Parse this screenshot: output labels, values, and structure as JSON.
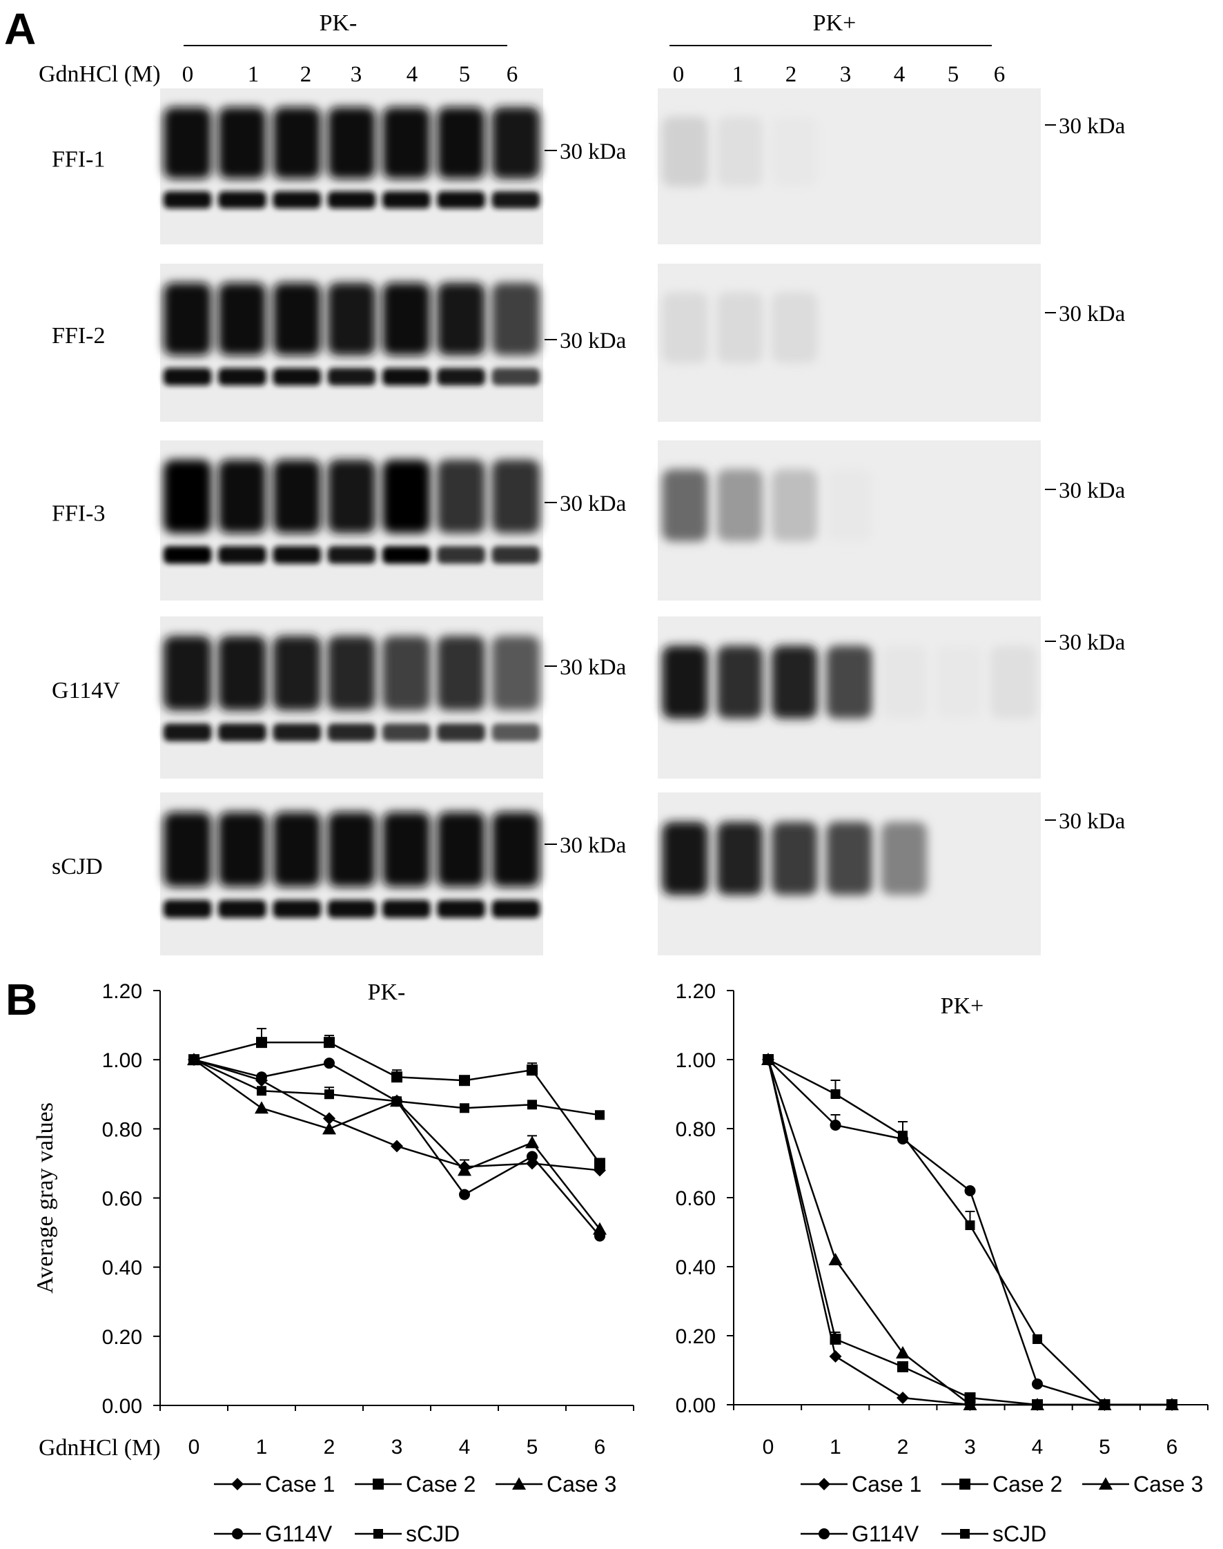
{
  "panel_labels": {
    "a": "A",
    "b": "B"
  },
  "blots": {
    "pk_minus_header": "PK-",
    "pk_plus_header": "PK+",
    "gdn_label": "GdnHCl (M)",
    "lanes": [
      "0",
      "1",
      "2",
      "3",
      "4",
      "5",
      "6"
    ],
    "marker": "30 kDa",
    "rows": [
      {
        "label": "FFI-1",
        "pk_minus_intensity": [
          0.95,
          0.95,
          0.95,
          0.95,
          0.95,
          0.95,
          0.9
        ],
        "pk_plus_intensity": [
          0.12,
          0.06,
          0.02,
          0.0,
          0.0,
          0.0,
          0.0
        ]
      },
      {
        "label": "FFI-2",
        "pk_minus_intensity": [
          0.95,
          0.95,
          0.95,
          0.92,
          0.95,
          0.9,
          0.75
        ],
        "pk_plus_intensity": [
          0.08,
          0.08,
          0.07,
          0.0,
          0.0,
          0.0,
          0.0
        ]
      },
      {
        "label": "FFI-3",
        "pk_minus_intensity": [
          0.98,
          0.95,
          0.95,
          0.9,
          0.98,
          0.8,
          0.8
        ],
        "pk_plus_intensity": [
          0.55,
          0.35,
          0.2,
          0.02,
          0.0,
          0.0,
          0.0
        ]
      },
      {
        "label": "G114V",
        "pk_minus_intensity": [
          0.9,
          0.92,
          0.88,
          0.85,
          0.75,
          0.8,
          0.65
        ],
        "pk_plus_intensity": [
          0.9,
          0.8,
          0.85,
          0.7,
          0.03,
          0.02,
          0.06
        ]
      },
      {
        "label": "sCJD",
        "pk_minus_intensity": [
          0.95,
          0.95,
          0.95,
          0.95,
          0.95,
          0.95,
          0.95
        ],
        "pk_plus_intensity": [
          0.9,
          0.85,
          0.75,
          0.7,
          0.45,
          0.0,
          0.0
        ]
      }
    ]
  },
  "chart_data": [
    {
      "type": "line",
      "title": "PK-",
      "xlabel": "GdnHCl (M)",
      "ylabel": "Average gray values",
      "categories": [
        "0",
        "1",
        "2",
        "3",
        "4",
        "5",
        "6"
      ],
      "yticks": [
        "0.00",
        "0.20",
        "0.40",
        "0.60",
        "0.80",
        "1.00",
        "1.20"
      ],
      "ylim": [
        0,
        1.2
      ],
      "grid": false,
      "legend_position": "bottom",
      "series": [
        {
          "name": "Case 1",
          "marker": "diamond",
          "values": [
            1.0,
            0.94,
            0.83,
            0.75,
            0.69,
            0.7,
            0.68
          ],
          "errors": [
            0,
            0,
            0,
            0,
            0,
            0,
            0
          ]
        },
        {
          "name": "Case 2",
          "marker": "square",
          "values": [
            1.0,
            1.05,
            1.05,
            0.95,
            0.94,
            0.97,
            0.7
          ],
          "errors": [
            0,
            0.04,
            0.02,
            0.02,
            0,
            0.02,
            0
          ]
        },
        {
          "name": "Case 3",
          "marker": "triangle",
          "values": [
            1.0,
            0.86,
            0.8,
            0.88,
            0.68,
            0.76,
            0.51
          ],
          "errors": [
            0,
            0,
            0,
            0,
            0.03,
            0.02,
            0
          ]
        },
        {
          "name": "G114V",
          "marker": "circle",
          "values": [
            1.0,
            0.95,
            0.99,
            0.88,
            0.61,
            0.72,
            0.49
          ],
          "errors": [
            0,
            0,
            0,
            0,
            0,
            0,
            0
          ]
        },
        {
          "name": "sCJD",
          "marker": "small-square",
          "values": [
            1.0,
            0.91,
            0.9,
            0.88,
            0.86,
            0.87,
            0.84
          ],
          "errors": [
            0,
            0,
            0.02,
            0,
            0,
            0,
            0
          ]
        }
      ]
    },
    {
      "type": "line",
      "title": "PK+",
      "xlabel": "",
      "ylabel": "",
      "categories": [
        "0",
        "1",
        "2",
        "3",
        "4",
        "5",
        "6"
      ],
      "yticks": [
        "0.00",
        "0.20",
        "0.40",
        "0.60",
        "0.80",
        "1.00",
        "1.20"
      ],
      "ylim": [
        0,
        1.2
      ],
      "grid": false,
      "legend_position": "bottom",
      "series": [
        {
          "name": "Case 1",
          "marker": "diamond",
          "values": [
            1.0,
            0.14,
            0.02,
            0.0,
            0.0,
            0.0,
            0.0
          ],
          "errors": [
            0,
            0,
            0,
            0,
            0,
            0,
            0
          ]
        },
        {
          "name": "Case 2",
          "marker": "square",
          "values": [
            1.0,
            0.19,
            0.11,
            0.02,
            0.0,
            0.0,
            0.0
          ],
          "errors": [
            0,
            0.02,
            0,
            0,
            0,
            0,
            0
          ]
        },
        {
          "name": "Case 3",
          "marker": "triangle",
          "values": [
            1.0,
            0.42,
            0.15,
            0.0,
            0.0,
            0.0,
            0.0
          ],
          "errors": [
            0,
            0,
            0,
            0,
            0,
            0,
            0
          ]
        },
        {
          "name": "G114V",
          "marker": "circle",
          "values": [
            1.0,
            0.81,
            0.77,
            0.62,
            0.06,
            0.0,
            0.0
          ],
          "errors": [
            0,
            0.03,
            0,
            0,
            0,
            0,
            0
          ]
        },
        {
          "name": "sCJD",
          "marker": "small-square",
          "values": [
            1.0,
            0.9,
            0.78,
            0.52,
            0.19,
            0.0,
            0.0
          ],
          "errors": [
            0,
            0.04,
            0.04,
            0.04,
            0,
            0,
            0
          ]
        }
      ]
    }
  ]
}
